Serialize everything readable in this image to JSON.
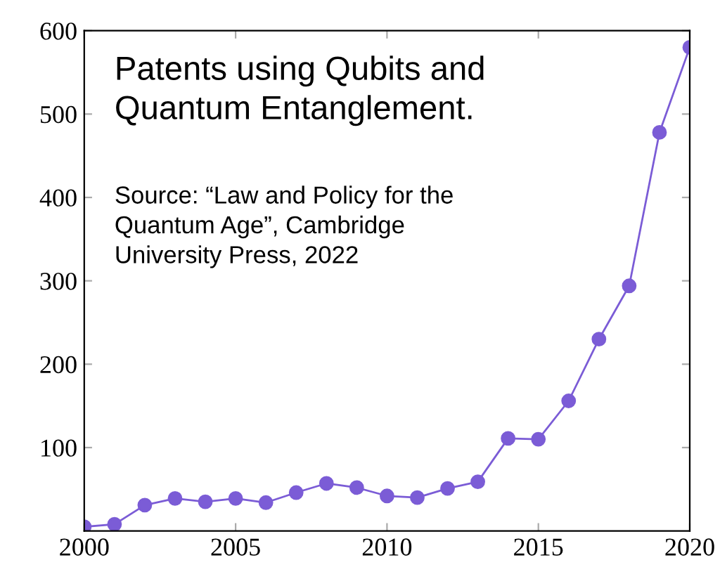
{
  "chart_data": {
    "type": "line",
    "title": "Patents using Qubits and\nQuantum Entanglement.",
    "annotations": [
      "Source: “Law and Policy for the\nQuantum Age”, Cambridge\nUniversity Press, 2022"
    ],
    "x": [
      2000,
      2001,
      2002,
      2003,
      2004,
      2005,
      2006,
      2007,
      2008,
      2009,
      2010,
      2011,
      2012,
      2013,
      2014,
      2015,
      2016,
      2017,
      2018,
      2019,
      2020
    ],
    "series": [
      {
        "color": "#7b5cd6",
        "values": [
          5,
          8,
          31,
          39,
          35,
          39,
          34,
          46,
          57,
          52,
          42,
          40,
          51,
          59,
          111,
          110,
          156,
          230,
          294,
          478,
          580
        ]
      }
    ],
    "xlim": [
      2000,
      2020
    ],
    "ylim": [
      0,
      600
    ],
    "xticks": [
      2000,
      2005,
      2010,
      2015,
      2020
    ],
    "yticks": [
      100,
      200,
      300,
      400,
      500,
      600
    ],
    "marker": "circle",
    "line_style": "solid",
    "grid": false
  }
}
